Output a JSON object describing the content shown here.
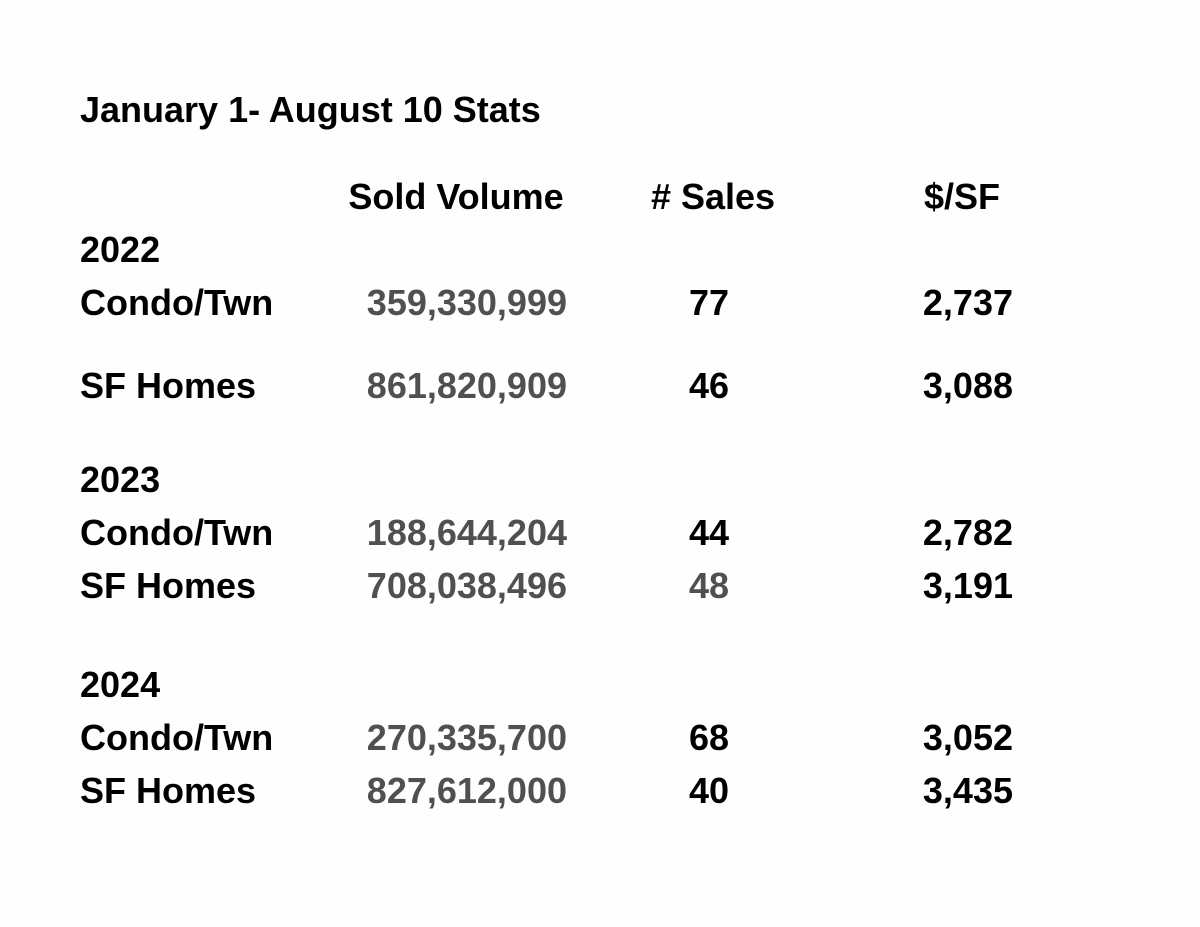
{
  "title": "January 1- August 10 Stats",
  "headers": [
    "Sold Volume",
    "# Sales",
    "$/SF"
  ],
  "groups": [
    {
      "year": "2022",
      "rows": [
        {
          "label": "Condo/Twn",
          "volume": "359,330,999",
          "sales": "77",
          "price": "2,737"
        },
        {
          "label": "SF Homes",
          "volume": "861,820,909",
          "sales": "46",
          "price": "3,088"
        }
      ]
    },
    {
      "year": "2023",
      "rows": [
        {
          "label": "Condo/Twn",
          "volume": "188,644,204",
          "sales": "44",
          "price": "2,782"
        },
        {
          "label": "SF Homes",
          "volume": "708,038,496",
          "sales": "48",
          "price": "3,191"
        }
      ]
    },
    {
      "year": "2024",
      "rows": [
        {
          "label": "Condo/Twn",
          "volume": "270,335,700",
          "sales": "68",
          "price": "3,052"
        },
        {
          "label": "SF Homes",
          "volume": "827,612,000",
          "sales": "40",
          "price": "3,435"
        }
      ]
    }
  ]
}
